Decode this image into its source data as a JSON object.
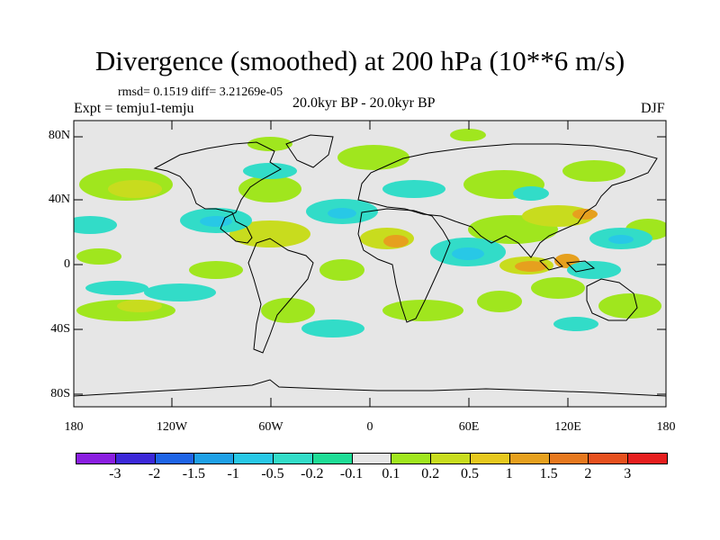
{
  "title": "Divergence (smoothed) at 200 hPa (10**6 m/s)",
  "stats": "rmsd= 0.1519 diff= 3.21269e-05",
  "experiment": "Expt = temju1-temju",
  "period": "20.0kyr BP - 20.0kyr BP",
  "season": "DJF",
  "map": {
    "lon_range": [
      -180,
      180
    ],
    "lat_range": [
      -90,
      90
    ],
    "y_ticks": [
      "80N",
      "40N",
      "0",
      "40S",
      "80S"
    ],
    "x_ticks": [
      "180",
      "120W",
      "60W",
      "0",
      "60E",
      "120E",
      "180"
    ]
  },
  "colorbar": {
    "colors": [
      "#8a1ee0",
      "#3c28d8",
      "#1e64e6",
      "#1ea0e6",
      "#28c8e6",
      "#32dcc8",
      "#1edc96",
      "#e6e6e6",
      "#a0e61e",
      "#c8dc1e",
      "#e6c81e",
      "#e6a01e",
      "#e6781e",
      "#e6501e",
      "#e61e1e"
    ],
    "labels": [
      "-3",
      "-2",
      "-1.5",
      "-1",
      "-0.5",
      "-0.2",
      "-0.1",
      "0.1",
      "0.2",
      "0.5",
      "1",
      "1.5",
      "2",
      "3"
    ]
  }
}
